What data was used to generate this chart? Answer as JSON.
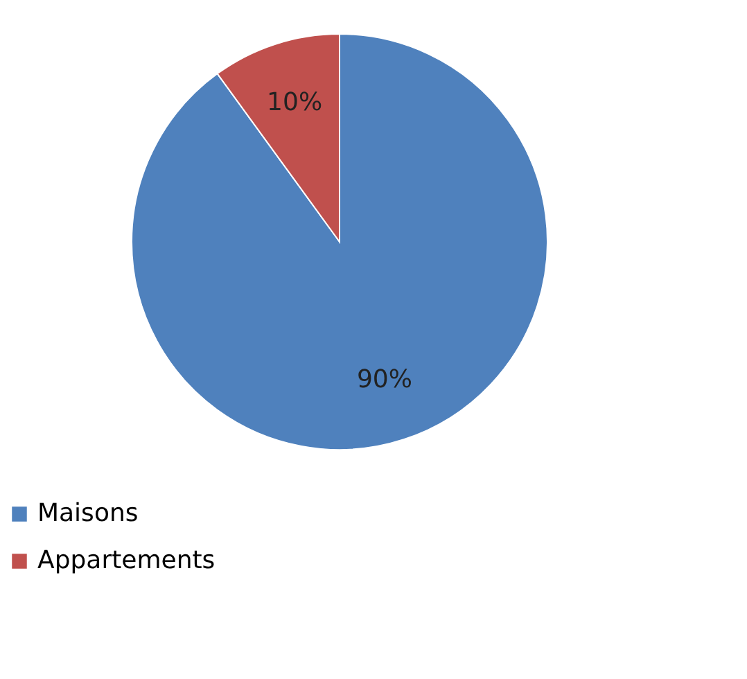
{
  "chart_data": {
    "type": "pie",
    "categories": [
      "Maisons",
      "Appartements"
    ],
    "values": [
      90,
      10
    ],
    "colors": [
      "#4f81bd",
      "#c0504d"
    ],
    "value_labels": [
      "90%",
      "10%"
    ],
    "legend": "bottom"
  }
}
